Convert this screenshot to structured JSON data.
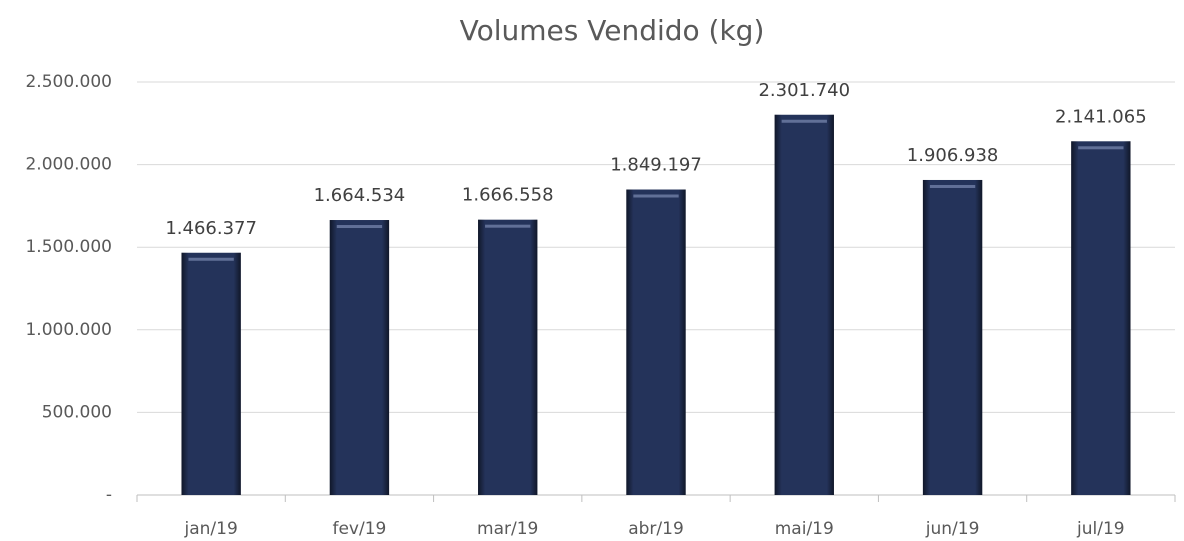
{
  "chart_data": {
    "type": "bar",
    "title": "Volumes Vendido (kg)",
    "categories": [
      "jan/19",
      "fev/19",
      "mar/19",
      "abr/19",
      "mai/19",
      "jun/19",
      "jul/19"
    ],
    "values": [
      1466377,
      1664534,
      1666558,
      1849197,
      2301740,
      1906938,
      2141065
    ],
    "value_labels": [
      "1.466.377",
      "1.664.534",
      "1.666.558",
      "1.849.197",
      "2.301.740",
      "1.906.938",
      "2.141.065"
    ],
    "color": "#24335a",
    "ylim": [
      0,
      2500000
    ],
    "yticks": [
      {
        "value": 0,
        "label": "-"
      },
      {
        "value": 500000,
        "label": "500.000"
      },
      {
        "value": 1000000,
        "label": "1.000.000"
      },
      {
        "value": 1500000,
        "label": "1.500.000"
      },
      {
        "value": 2000000,
        "label": "2.000.000"
      },
      {
        "value": 2500000,
        "label": "2.500.000"
      }
    ],
    "grid": true
  }
}
